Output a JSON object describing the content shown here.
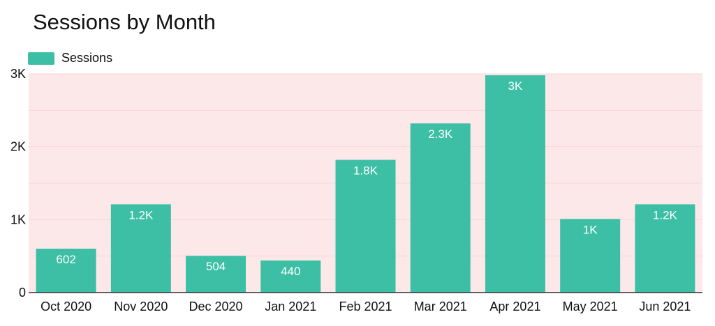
{
  "chart_data": {
    "type": "bar",
    "title": "Sessions by Month",
    "xlabel": "",
    "ylabel": "",
    "categories": [
      "Oct 2020",
      "Nov 2020",
      "Dec 2020",
      "Jan 2021",
      "Feb 2021",
      "Mar 2021",
      "Apr 2021",
      "May 2021",
      "Jun 2021"
    ],
    "series": [
      {
        "name": "Sessions",
        "values": [
          602,
          1210,
          504,
          440,
          1820,
          2320,
          2980,
          1010,
          1210
        ],
        "labels": [
          "602",
          "1.2K",
          "504",
          "440",
          "1.8K",
          "2.3K",
          "3K",
          "1K",
          "1.2K"
        ]
      }
    ],
    "ylim": [
      0,
      3000
    ],
    "yticks": [
      0,
      1000,
      2000,
      3000
    ],
    "ytick_labels": [
      "0",
      "1K",
      "2K",
      "3K"
    ],
    "grid": true,
    "legend": "top-left",
    "colors": {
      "bar": "#3dbfa5",
      "plot_background": "#fde8e9",
      "gridline": "#f6d6d8",
      "axis": "#333333"
    }
  }
}
